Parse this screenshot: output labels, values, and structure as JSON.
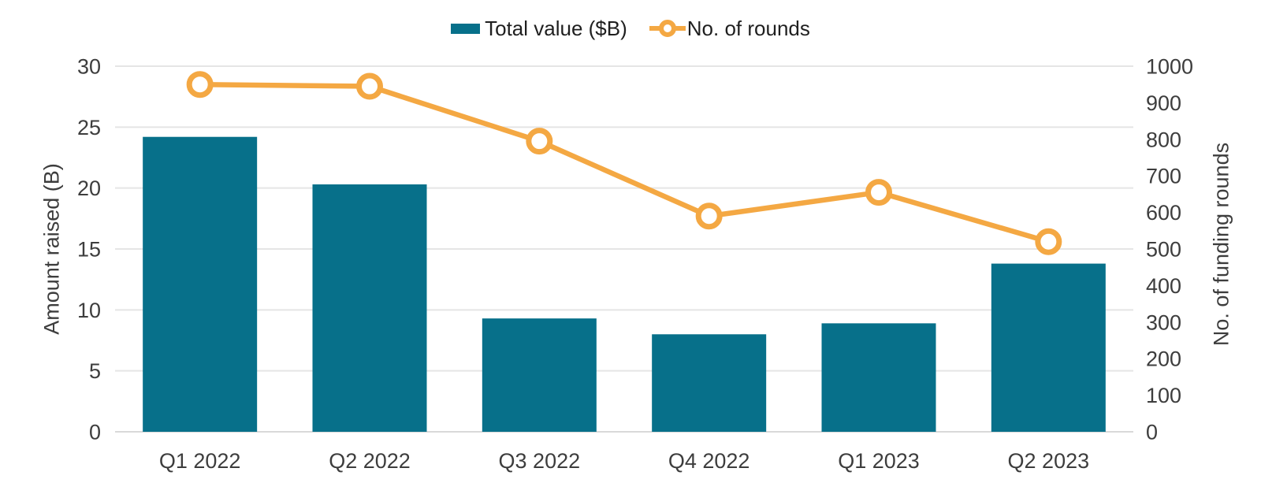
{
  "colors": {
    "background": "#FFFFFF",
    "bar": "#07708A",
    "line": "#F4A843",
    "gridline": "#E5E5E5",
    "axis_line": "#D9D9D9",
    "tick_text": "#3D3D3D",
    "legend_text": "#1F1F1F",
    "marker_fill": "#FFFFFF"
  },
  "chart_data": {
    "type": "bar+line",
    "categories": [
      "Q1 2022",
      "Q2 2022",
      "Q3 2022",
      "Q4 2022",
      "Q1 2023",
      "Q2 2023"
    ],
    "series": [
      {
        "name": "Total value ($B)",
        "type": "bar",
        "axis": "left",
        "values": [
          24.2,
          20.3,
          9.3,
          8.0,
          8.9,
          13.8
        ]
      },
      {
        "name": "No. of rounds",
        "type": "line",
        "axis": "right",
        "values": [
          950,
          945,
          795,
          590,
          655,
          520
        ]
      }
    ],
    "left_axis": {
      "label": "Amount raised (B)",
      "min": 0,
      "max": 30,
      "step": 5,
      "ticks": [
        0,
        5,
        10,
        15,
        20,
        25,
        30
      ]
    },
    "right_axis": {
      "label": "No. of funding rounds",
      "min": 0,
      "max": 1000,
      "step": 100,
      "ticks": [
        0,
        100,
        200,
        300,
        400,
        500,
        600,
        700,
        800,
        900,
        1000
      ]
    },
    "grid": "horizontal gridlines at left-axis ticks",
    "legend_position": "top-center",
    "title": ""
  }
}
